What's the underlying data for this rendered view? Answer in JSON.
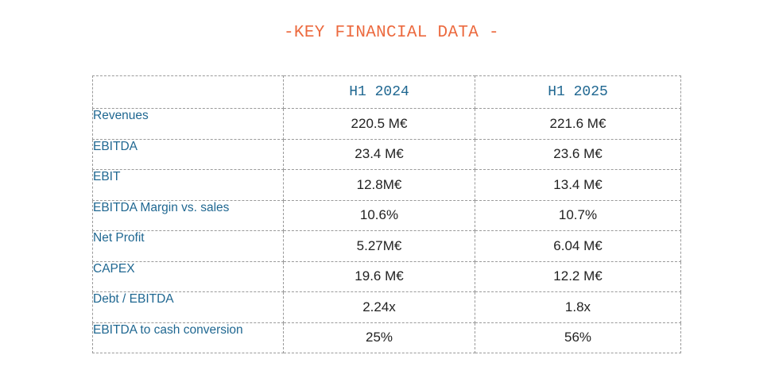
{
  "title": "-KEY FINANCIAL DATA -",
  "table": {
    "headers": [
      "",
      "H1 2024",
      "H1 2025"
    ],
    "rows": [
      {
        "label": "Revenues",
        "h1_2024": "220.5 M€",
        "h1_2025": "221.6 M€"
      },
      {
        "label": "EBITDA",
        "h1_2024": "23.4 M€",
        "h1_2025": "23.6 M€"
      },
      {
        "label": "EBIT",
        "h1_2024": "12.8M€",
        "h1_2025": "13.4 M€"
      },
      {
        "label": "EBITDA Margin vs. sales",
        "h1_2024": "10.6%",
        "h1_2025": "10.7%"
      },
      {
        "label": "Net Profit",
        "h1_2024": "5.27M€",
        "h1_2025": "6.04 M€"
      },
      {
        "label": "CAPEX",
        "h1_2024": "19.6 M€",
        "h1_2025": "12.2 M€"
      },
      {
        "label": "Debt / EBITDA",
        "h1_2024": "2.24x",
        "h1_2025": "1.8x"
      },
      {
        "label": "EBITDA to cash conversion",
        "h1_2024": "25%",
        "h1_2025": "56%"
      }
    ]
  },
  "colors": {
    "title": "#ec6a3f",
    "labels": "#1f6791",
    "values": "#222222",
    "border": "#9a9a9a"
  }
}
